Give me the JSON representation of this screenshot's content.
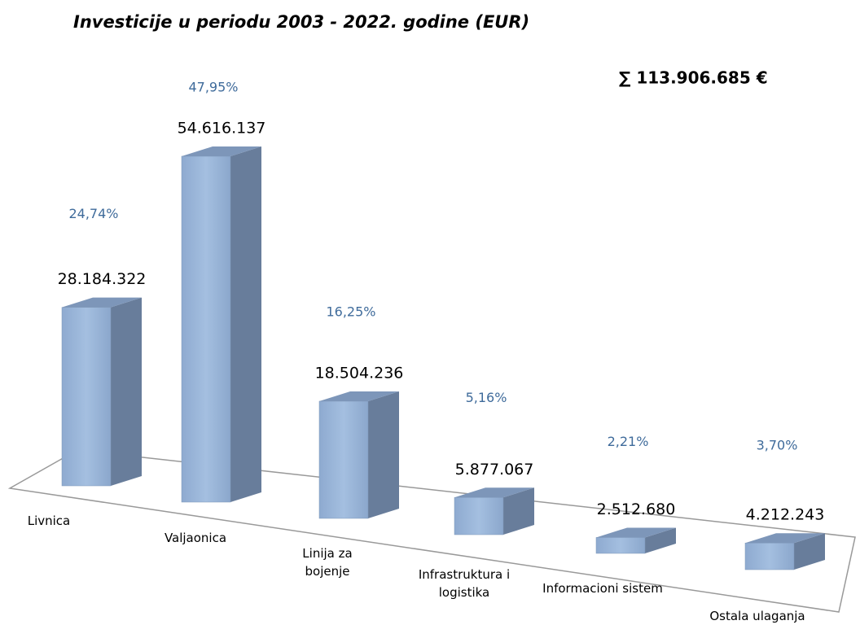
{
  "chart_data": {
    "type": "bar3d",
    "title": "Investicije u periodu 2003 - 2022. godine (EUR)",
    "total": "∑ 113.906.685 €",
    "categories": [
      "Livnica",
      "Valjaonica",
      "Linija za bojenje",
      "Infrastruktura i logistika",
      "Informacioni sistem",
      "Ostala ulaganja"
    ],
    "values": [
      28184322,
      54616137,
      18504236,
      5877067,
      2512680,
      4212243
    ],
    "value_labels": [
      "28.184.322",
      "54.616.137",
      "18.504.236",
      "5.877.067",
      "2.512.680",
      "4.212.243"
    ],
    "shares": [
      "24,74%",
      "47,95%",
      "16,25%",
      "5,16%",
      "2,21%",
      "3,70%"
    ],
    "color": "#95b3d7"
  }
}
